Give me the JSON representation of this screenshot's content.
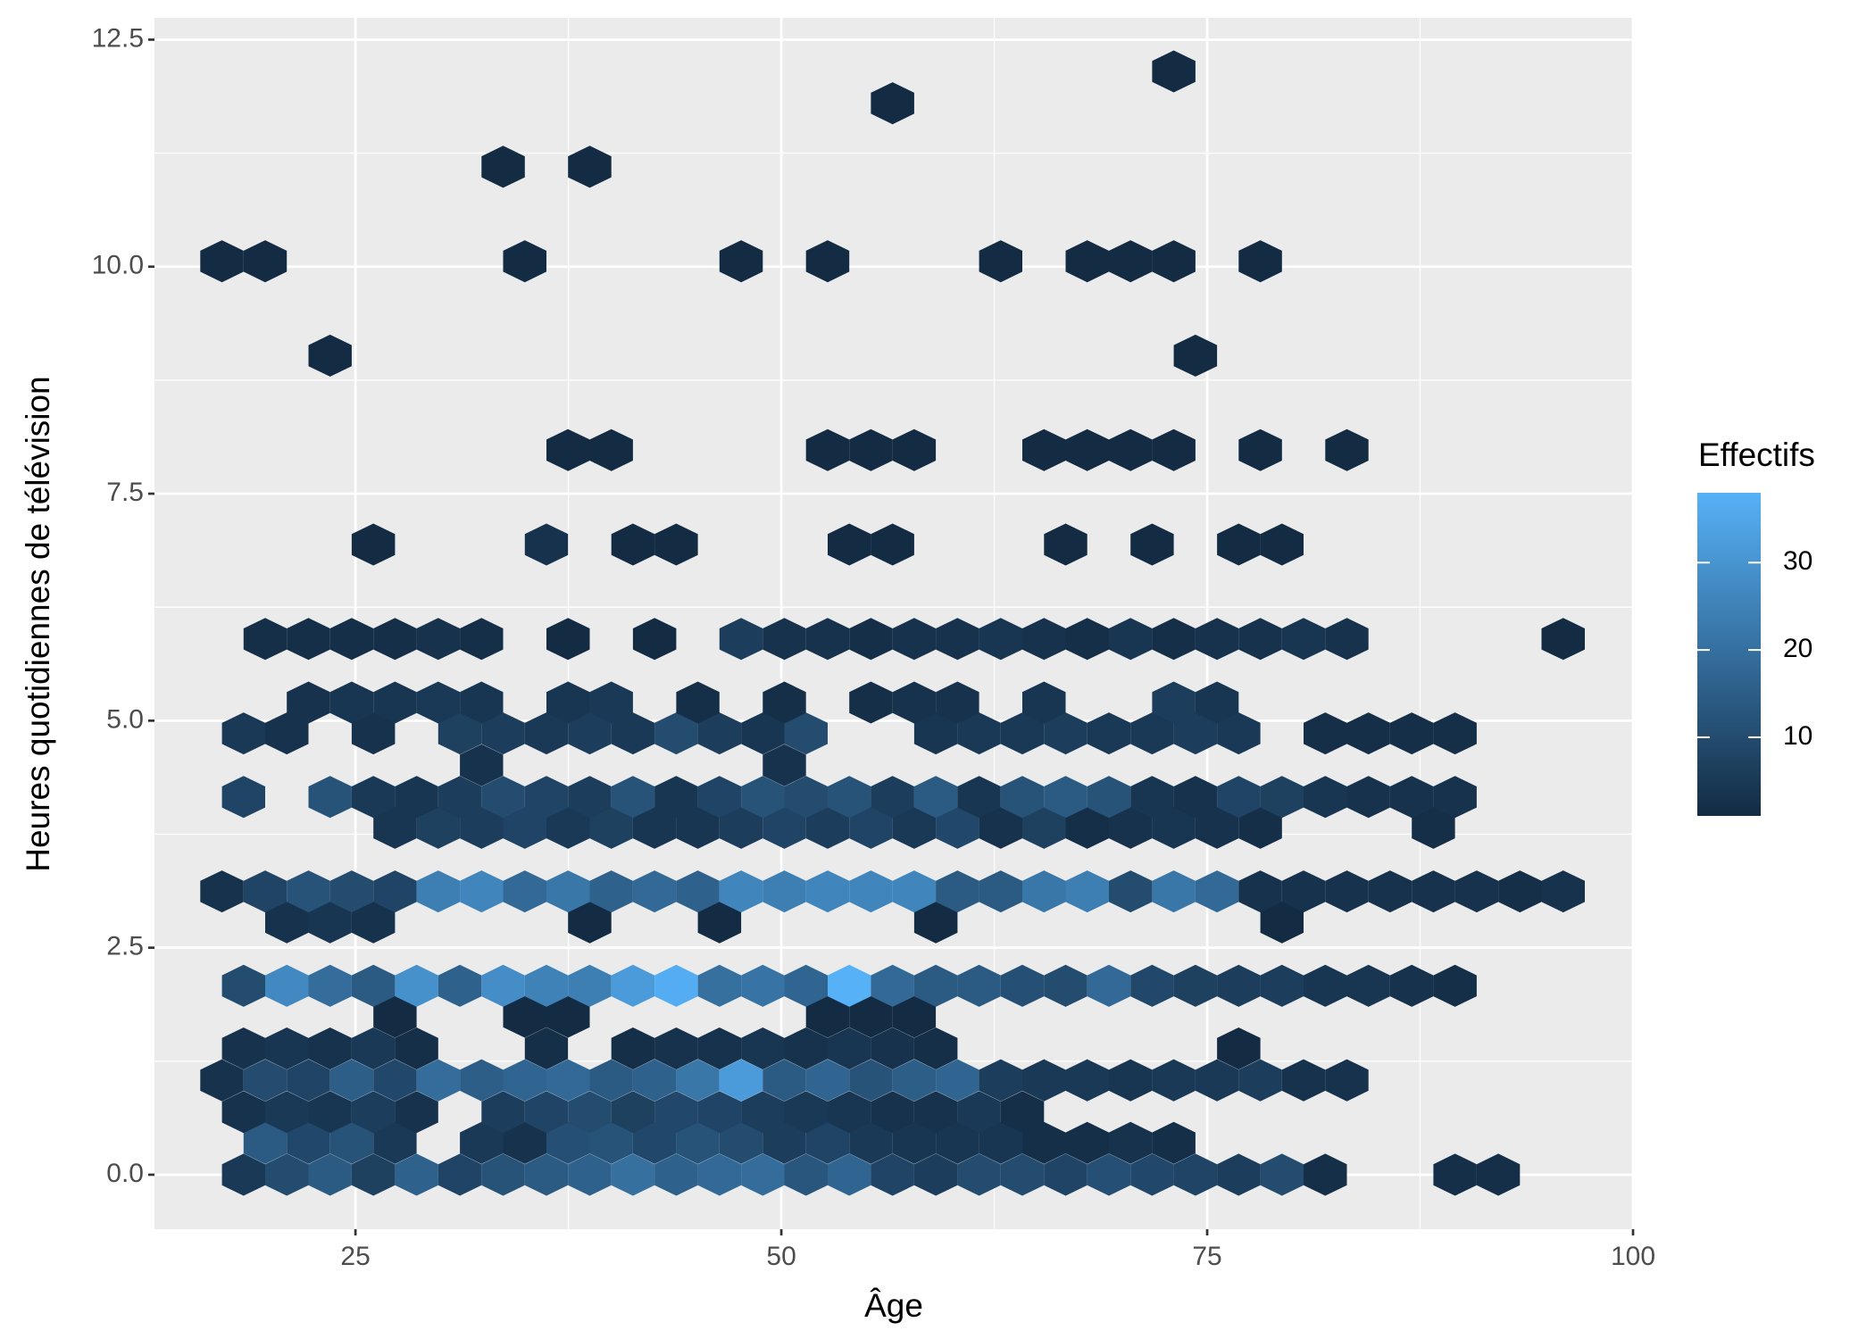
{
  "chart_data": {
    "type": "hexbin",
    "x_label": "Âge",
    "y_label": "Heures quotidiennes de télévision",
    "xlim": [
      13.2,
      100
    ],
    "ylim": [
      -0.6,
      12.74
    ],
    "xticks": [
      25,
      50,
      75,
      100
    ],
    "yticks": [
      {
        "value": 0,
        "label": "0.0"
      },
      2.5,
      {
        "value": 5,
        "label": "5.0"
      },
      7.5,
      {
        "value": 10,
        "label": "10.0"
      },
      12.5
    ],
    "grid": true,
    "colorbar": {
      "title": "Effectifs",
      "lim": [
        1,
        38
      ],
      "ticks": [
        10,
        20,
        30
      ],
      "colors": [
        "#132b43",
        "#56b1f7"
      ]
    },
    "x": [
      18.43,
      20.97,
      23.51,
      26.05,
      28.59,
      31.13,
      33.67,
      36.21,
      38.75,
      41.29,
      43.83,
      46.37,
      48.91,
      51.45,
      53.99,
      56.53,
      59.07,
      61.61,
      64.15,
      66.69,
      69.23,
      71.77,
      74.31,
      76.85,
      79.39,
      81.93,
      89.55,
      92.09,
      19.7,
      22.24,
      24.78,
      27.32,
      32.4,
      34.94,
      37.48,
      40.02,
      42.56,
      45.1,
      47.64,
      50.18,
      52.72,
      55.26,
      57.8,
      60.34,
      62.88,
      65.42,
      67.96,
      70.5,
      73.04,
      18.43,
      20.97,
      23.51,
      26.05,
      28.59,
      33.67,
      36.21,
      38.75,
      41.29,
      43.83,
      46.37,
      48.91,
      51.45,
      53.99,
      56.53,
      59.07,
      61.61,
      64.15,
      17.16,
      19.7,
      22.24,
      24.78,
      27.32,
      29.86,
      32.4,
      34.94,
      37.48,
      40.02,
      42.56,
      45.1,
      47.64,
      50.18,
      52.72,
      55.26,
      57.8,
      60.34,
      62.88,
      65.42,
      67.96,
      70.5,
      73.04,
      75.58,
      78.12,
      80.66,
      83.2,
      18.43,
      20.97,
      23.51,
      26.05,
      28.59,
      36.21,
      41.29,
      43.83,
      46.37,
      48.91,
      51.45,
      53.99,
      56.53,
      59.07,
      76.85,
      27.32,
      34.94,
      37.48,
      52.72,
      55.26,
      57.8,
      18.43,
      20.97,
      23.51,
      26.05,
      28.59,
      31.13,
      33.67,
      36.21,
      38.75,
      41.29,
      43.83,
      46.37,
      48.91,
      51.45,
      53.99,
      56.53,
      59.07,
      61.61,
      64.15,
      66.69,
      69.23,
      71.77,
      74.31,
      76.85,
      79.39,
      81.93,
      84.47,
      87.01,
      89.55,
      20.97,
      23.51,
      26.05,
      38.75,
      46.37,
      59.07,
      79.39,
      17.16,
      19.7,
      22.24,
      24.78,
      27.32,
      29.86,
      32.4,
      34.94,
      37.48,
      40.02,
      42.56,
      45.1,
      47.64,
      50.18,
      52.72,
      55.26,
      57.8,
      60.34,
      62.88,
      65.42,
      67.96,
      70.5,
      73.04,
      75.58,
      78.12,
      80.66,
      83.2,
      85.74,
      88.28,
      90.82,
      93.36,
      95.9,
      27.32,
      29.86,
      32.4,
      34.94,
      37.48,
      40.02,
      42.56,
      45.1,
      47.64,
      50.18,
      52.72,
      55.26,
      57.8,
      60.34,
      62.88,
      65.42,
      67.96,
      70.5,
      73.04,
      75.58,
      78.12,
      88.28,
      18.43,
      23.51,
      26.05,
      28.59,
      31.13,
      33.67,
      36.21,
      38.75,
      41.29,
      43.83,
      46.37,
      48.91,
      51.45,
      53.99,
      56.53,
      59.07,
      61.61,
      64.15,
      66.69,
      69.23,
      71.77,
      74.31,
      76.85,
      79.39,
      81.93,
      84.47,
      87.01,
      89.55,
      32.4,
      50.18,
      18.43,
      20.97,
      26.05,
      31.13,
      33.67,
      36.21,
      38.75,
      41.29,
      43.83,
      46.37,
      48.91,
      51.45,
      59.07,
      61.61,
      64.15,
      66.69,
      69.23,
      71.77,
      74.31,
      76.85,
      81.93,
      84.47,
      87.01,
      89.55,
      22.24,
      24.78,
      27.32,
      29.86,
      32.4,
      37.48,
      40.02,
      45.1,
      50.18,
      55.26,
      57.8,
      60.34,
      65.42,
      73.04,
      75.58,
      19.7,
      22.24,
      24.78,
      27.32,
      29.86,
      32.4,
      37.48,
      42.56,
      47.64,
      50.18,
      52.72,
      55.26,
      57.8,
      60.34,
      62.88,
      65.42,
      67.96,
      70.5,
      73.04,
      75.58,
      78.12,
      80.66,
      83.2,
      95.9,
      26.05,
      36.21,
      41.29,
      43.83,
      53.99,
      56.53,
      66.69,
      71.77,
      76.85,
      79.39,
      37.48,
      40.02,
      52.72,
      55.26,
      57.8,
      65.42,
      67.96,
      70.5,
      73.04,
      78.12,
      83.2,
      23.51,
      74.31,
      17.16,
      19.7,
      34.94,
      47.64,
      52.72,
      62.88,
      67.96,
      70.5,
      73.04,
      78.12,
      33.67,
      38.75,
      56.53,
      73.04
    ],
    "y": [
      0,
      0,
      0,
      0,
      0,
      0,
      0,
      0,
      0,
      0,
      0,
      0,
      0,
      0,
      0,
      0,
      0,
      0,
      0,
      0,
      0,
      0,
      0,
      0,
      0,
      0,
      0,
      0,
      0.35,
      0.35,
      0.35,
      0.35,
      0.35,
      0.35,
      0.35,
      0.35,
      0.35,
      0.35,
      0.35,
      0.35,
      0.35,
      0.35,
      0.35,
      0.35,
      0.35,
      0.35,
      0.35,
      0.35,
      0.35,
      0.69,
      0.69,
      0.69,
      0.69,
      0.69,
      0.69,
      0.69,
      0.69,
      0.69,
      0.69,
      0.69,
      0.69,
      0.69,
      0.69,
      0.69,
      0.69,
      0.69,
      0.69,
      1.04,
      1.04,
      1.04,
      1.04,
      1.04,
      1.04,
      1.04,
      1.04,
      1.04,
      1.04,
      1.04,
      1.04,
      1.04,
      1.04,
      1.04,
      1.04,
      1.04,
      1.04,
      1.04,
      1.04,
      1.04,
      1.04,
      1.04,
      1.04,
      1.04,
      1.04,
      1.04,
      1.39,
      1.39,
      1.39,
      1.39,
      1.39,
      1.39,
      1.39,
      1.39,
      1.39,
      1.39,
      1.39,
      1.39,
      1.39,
      1.39,
      1.39,
      1.74,
      1.74,
      1.74,
      1.74,
      1.74,
      1.74,
      2.08,
      2.08,
      2.08,
      2.08,
      2.08,
      2.08,
      2.08,
      2.08,
      2.08,
      2.08,
      2.08,
      2.08,
      2.08,
      2.08,
      2.08,
      2.08,
      2.08,
      2.08,
      2.08,
      2.08,
      2.08,
      2.08,
      2.08,
      2.08,
      2.08,
      2.08,
      2.08,
      2.08,
      2.08,
      2.78,
      2.78,
      2.78,
      2.78,
      2.78,
      2.78,
      2.78,
      3.12,
      3.12,
      3.12,
      3.12,
      3.12,
      3.12,
      3.12,
      3.12,
      3.12,
      3.12,
      3.12,
      3.12,
      3.12,
      3.12,
      3.12,
      3.12,
      3.12,
      3.12,
      3.12,
      3.12,
      3.12,
      3.12,
      3.12,
      3.12,
      3.12,
      3.12,
      3.12,
      3.12,
      3.12,
      3.12,
      3.12,
      3.12,
      3.82,
      3.82,
      3.82,
      3.82,
      3.82,
      3.82,
      3.82,
      3.82,
      3.82,
      3.82,
      3.82,
      3.82,
      3.82,
      3.82,
      3.82,
      3.82,
      3.82,
      3.82,
      3.82,
      3.82,
      3.82,
      3.82,
      4.16,
      4.16,
      4.16,
      4.16,
      4.16,
      4.16,
      4.16,
      4.16,
      4.16,
      4.16,
      4.16,
      4.16,
      4.16,
      4.16,
      4.16,
      4.16,
      4.16,
      4.16,
      4.16,
      4.16,
      4.16,
      4.16,
      4.16,
      4.16,
      4.16,
      4.16,
      4.16,
      4.16,
      4.51,
      4.51,
      4.86,
      4.86,
      4.86,
      4.86,
      4.86,
      4.86,
      4.86,
      4.86,
      4.86,
      4.86,
      4.86,
      4.86,
      4.86,
      4.86,
      4.86,
      4.86,
      4.86,
      4.86,
      4.86,
      4.86,
      4.86,
      4.86,
      4.86,
      4.86,
      5.2,
      5.2,
      5.2,
      5.2,
      5.2,
      5.2,
      5.2,
      5.2,
      5.2,
      5.2,
      5.2,
      5.2,
      5.2,
      5.2,
      5.2,
      5.9,
      5.9,
      5.9,
      5.9,
      5.9,
      5.9,
      5.9,
      5.9,
      5.9,
      5.9,
      5.9,
      5.9,
      5.9,
      5.9,
      5.9,
      5.9,
      5.9,
      5.9,
      5.9,
      5.9,
      5.9,
      5.9,
      5.9,
      5.9,
      6.94,
      6.94,
      6.94,
      6.94,
      6.94,
      6.94,
      6.94,
      6.94,
      6.94,
      6.94,
      7.98,
      7.98,
      7.98,
      7.98,
      7.98,
      7.98,
      7.98,
      7.98,
      7.98,
      7.98,
      7.98,
      9.02,
      9.02,
      10.06,
      10.06,
      10.06,
      10.06,
      10.06,
      10.06,
      10.06,
      10.06,
      10.06,
      10.06,
      11.1,
      11.1,
      11.8,
      12.15
    ],
    "values": [
      5,
      10,
      14,
      7,
      16,
      8,
      12,
      14,
      16,
      20,
      16,
      18,
      19,
      13,
      17,
      8,
      6,
      10,
      10,
      8,
      11,
      9,
      8,
      6,
      10,
      2,
      2,
      2,
      14,
      9,
      12,
      5,
      5,
      3,
      11,
      12,
      9,
      12,
      10,
      6,
      8,
      5,
      4,
      4,
      4,
      2,
      2,
      3,
      2,
      3,
      5,
      4,
      6,
      3,
      6,
      8,
      10,
      7,
      9,
      8,
      6,
      5,
      4,
      3,
      3,
      5,
      2,
      3,
      10,
      8,
      15,
      9,
      19,
      15,
      17,
      18,
      14,
      16,
      22,
      32,
      14,
      17,
      12,
      15,
      17,
      6,
      5,
      5,
      4,
      5,
      5,
      6,
      3,
      3,
      3,
      4,
      3,
      5,
      2,
      2,
      2,
      3,
      3,
      4,
      3,
      4,
      3,
      2,
      1,
      1,
      1,
      1,
      1,
      1,
      1,
      10,
      27,
      19,
      14,
      29,
      16,
      28,
      25,
      24,
      32,
      37,
      20,
      21,
      17,
      38,
      18,
      14,
      14,
      11,
      10,
      18,
      9,
      7,
      6,
      6,
      4,
      4,
      3,
      2,
      3,
      4,
      3,
      1,
      1,
      1,
      1,
      3,
      8,
      12,
      10,
      8,
      24,
      26,
      18,
      22,
      16,
      18,
      16,
      26,
      24,
      26,
      26,
      26,
      14,
      14,
      22,
      24,
      10,
      22,
      18,
      3,
      3,
      3,
      3,
      3,
      3,
      2,
      3,
      4,
      7,
      6,
      8,
      5,
      7,
      4,
      4,
      6,
      8,
      6,
      8,
      5,
      9,
      3,
      7,
      2,
      3,
      4,
      3,
      2,
      2,
      8,
      12,
      5,
      4,
      6,
      10,
      8,
      6,
      12,
      4,
      8,
      12,
      10,
      12,
      6,
      14,
      4,
      12,
      14,
      12,
      4,
      3,
      8,
      7,
      4,
      3,
      3,
      3,
      3,
      3,
      5,
      3,
      3,
      7,
      6,
      5,
      6,
      5,
      10,
      6,
      4,
      10,
      4,
      5,
      5,
      6,
      5,
      5,
      6,
      5,
      2,
      2,
      2,
      2,
      3,
      4,
      4,
      5,
      4,
      4,
      5,
      2,
      2,
      2,
      3,
      3,
      4,
      6,
      4,
      2,
      2,
      2,
      2,
      3,
      2,
      1,
      1,
      6,
      3,
      3,
      2,
      3,
      3,
      4,
      3,
      2,
      4,
      2,
      3,
      3,
      4,
      3,
      1,
      1,
      3,
      1,
      1,
      1,
      1,
      1,
      1,
      1,
      1,
      1,
      1,
      1,
      1,
      1,
      1,
      1,
      1,
      1,
      1,
      1,
      1,
      1,
      1,
      1,
      1,
      1,
      1,
      1,
      1,
      1,
      1,
      1,
      1,
      1,
      1,
      1
    ]
  }
}
